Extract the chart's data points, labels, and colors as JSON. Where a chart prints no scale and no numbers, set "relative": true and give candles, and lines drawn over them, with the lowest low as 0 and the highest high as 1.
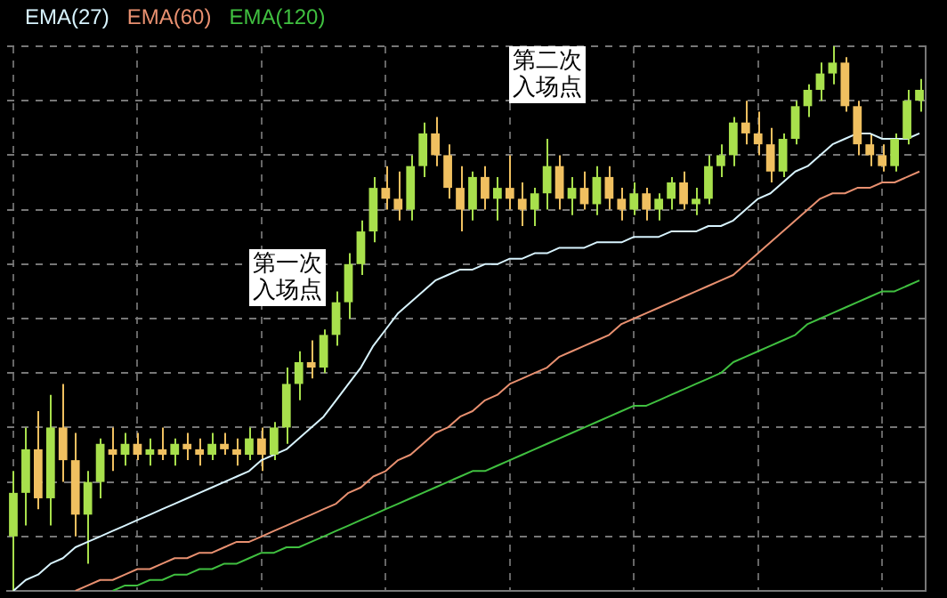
{
  "chart_data": {
    "type": "candlestick",
    "relative": true,
    "grid": true,
    "legend": "top left",
    "categories": [
      null,
      null,
      null,
      null,
      null,
      null,
      null,
      null,
      null,
      null,
      null,
      null,
      null,
      null,
      null,
      null,
      null,
      null,
      null,
      null,
      null,
      null,
      null,
      null,
      null,
      null,
      null,
      null,
      null,
      null,
      null,
      null,
      null,
      null,
      null,
      null,
      null,
      null,
      null,
      null,
      null,
      null,
      null,
      null,
      null,
      null,
      null,
      null,
      null,
      null,
      null,
      null,
      null,
      null,
      null,
      null,
      null,
      null,
      null,
      null,
      null,
      null,
      null,
      null,
      null,
      null,
      null,
      null,
      null,
      null,
      null,
      null,
      null,
      null
    ],
    "ohlc": [
      [
        0.1,
        0.22,
        0.0,
        0.18
      ],
      [
        0.18,
        0.3,
        0.12,
        0.26
      ],
      [
        0.26,
        0.33,
        0.15,
        0.17
      ],
      [
        0.17,
        0.36,
        0.12,
        0.3
      ],
      [
        0.3,
        0.38,
        0.2,
        0.24
      ],
      [
        0.24,
        0.29,
        0.1,
        0.14
      ],
      [
        0.14,
        0.22,
        0.05,
        0.2
      ],
      [
        0.2,
        0.28,
        0.17,
        0.27
      ],
      [
        0.26,
        0.3,
        0.22,
        0.25
      ],
      [
        0.25,
        0.29,
        0.23,
        0.27
      ],
      [
        0.27,
        0.29,
        0.24,
        0.25
      ],
      [
        0.25,
        0.28,
        0.23,
        0.26
      ],
      [
        0.26,
        0.3,
        0.24,
        0.25
      ],
      [
        0.25,
        0.28,
        0.23,
        0.27
      ],
      [
        0.27,
        0.29,
        0.24,
        0.26
      ],
      [
        0.26,
        0.28,
        0.23,
        0.25
      ],
      [
        0.25,
        0.29,
        0.24,
        0.27
      ],
      [
        0.27,
        0.29,
        0.25,
        0.26
      ],
      [
        0.26,
        0.28,
        0.23,
        0.25
      ],
      [
        0.25,
        0.3,
        0.24,
        0.28
      ],
      [
        0.28,
        0.3,
        0.22,
        0.25
      ],
      [
        0.25,
        0.31,
        0.24,
        0.3
      ],
      [
        0.3,
        0.41,
        0.27,
        0.38
      ],
      [
        0.38,
        0.44,
        0.35,
        0.42
      ],
      [
        0.42,
        0.46,
        0.39,
        0.41
      ],
      [
        0.41,
        0.48,
        0.4,
        0.47
      ],
      [
        0.47,
        0.55,
        0.45,
        0.53
      ],
      [
        0.53,
        0.62,
        0.5,
        0.6
      ],
      [
        0.6,
        0.68,
        0.58,
        0.66
      ],
      [
        0.66,
        0.76,
        0.64,
        0.74
      ],
      [
        0.74,
        0.78,
        0.7,
        0.72
      ],
      [
        0.72,
        0.77,
        0.68,
        0.7
      ],
      [
        0.7,
        0.8,
        0.68,
        0.78
      ],
      [
        0.78,
        0.86,
        0.76,
        0.84
      ],
      [
        0.84,
        0.87,
        0.78,
        0.8
      ],
      [
        0.8,
        0.82,
        0.72,
        0.74
      ],
      [
        0.74,
        0.78,
        0.66,
        0.7
      ],
      [
        0.7,
        0.77,
        0.68,
        0.76
      ],
      [
        0.76,
        0.78,
        0.7,
        0.72
      ],
      [
        0.72,
        0.76,
        0.68,
        0.74
      ],
      [
        0.74,
        0.8,
        0.7,
        0.72
      ],
      [
        0.72,
        0.75,
        0.67,
        0.7
      ],
      [
        0.7,
        0.74,
        0.67,
        0.73
      ],
      [
        0.73,
        0.83,
        0.7,
        0.78
      ],
      [
        0.78,
        0.8,
        0.7,
        0.72
      ],
      [
        0.72,
        0.76,
        0.69,
        0.74
      ],
      [
        0.74,
        0.77,
        0.7,
        0.71
      ],
      [
        0.71,
        0.78,
        0.69,
        0.76
      ],
      [
        0.76,
        0.78,
        0.7,
        0.72
      ],
      [
        0.72,
        0.74,
        0.68,
        0.7
      ],
      [
        0.7,
        0.75,
        0.69,
        0.73
      ],
      [
        0.73,
        0.74,
        0.68,
        0.7
      ],
      [
        0.7,
        0.73,
        0.68,
        0.72
      ],
      [
        0.72,
        0.76,
        0.7,
        0.75
      ],
      [
        0.75,
        0.77,
        0.7,
        0.71
      ],
      [
        0.71,
        0.74,
        0.69,
        0.72
      ],
      [
        0.72,
        0.8,
        0.71,
        0.78
      ],
      [
        0.78,
        0.82,
        0.76,
        0.8
      ],
      [
        0.8,
        0.87,
        0.78,
        0.86
      ],
      [
        0.86,
        0.9,
        0.82,
        0.84
      ],
      [
        0.84,
        0.88,
        0.8,
        0.82
      ],
      [
        0.82,
        0.85,
        0.75,
        0.77
      ],
      [
        0.77,
        0.84,
        0.76,
        0.83
      ],
      [
        0.83,
        0.9,
        0.82,
        0.89
      ],
      [
        0.89,
        0.93,
        0.87,
        0.92
      ],
      [
        0.92,
        0.97,
        0.9,
        0.95
      ],
      [
        0.95,
        1.0,
        0.93,
        0.97
      ],
      [
        0.97,
        0.98,
        0.88,
        0.89
      ],
      [
        0.89,
        0.9,
        0.8,
        0.82
      ],
      [
        0.82,
        0.84,
        0.78,
        0.8
      ],
      [
        0.8,
        0.82,
        0.77,
        0.78
      ],
      [
        0.78,
        0.84,
        0.77,
        0.83
      ],
      [
        0.83,
        0.92,
        0.82,
        0.9
      ],
      [
        0.9,
        0.94,
        0.88,
        0.92
      ]
    ],
    "colors": [
      "#a8e04c",
      "#a8e04c",
      "#f0c060",
      "#a8e04c",
      "#f0c060",
      "#f0c060",
      "#a8e04c",
      "#a8e04c",
      "#f0c060",
      "#a8e04c",
      "#f0c060",
      "#a8e04c",
      "#f0c060",
      "#a8e04c",
      "#f0c060",
      "#f0c060",
      "#a8e04c",
      "#f0c060",
      "#f0c060",
      "#a8e04c",
      "#f0c060",
      "#a8e04c",
      "#a8e04c",
      "#a8e04c",
      "#f0c060",
      "#a8e04c",
      "#a8e04c",
      "#a8e04c",
      "#a8e04c",
      "#a8e04c",
      "#f0c060",
      "#f0c060",
      "#a8e04c",
      "#a8e04c",
      "#f0c060",
      "#f0c060",
      "#f0c060",
      "#a8e04c",
      "#f0c060",
      "#a8e04c",
      "#f0c060",
      "#f0c060",
      "#a8e04c",
      "#a8e04c",
      "#f0c060",
      "#a8e04c",
      "#f0c060",
      "#a8e04c",
      "#f0c060",
      "#f0c060",
      "#a8e04c",
      "#f0c060",
      "#a8e04c",
      "#a8e04c",
      "#f0c060",
      "#a8e04c",
      "#a8e04c",
      "#a8e04c",
      "#a8e04c",
      "#f0c060",
      "#f0c060",
      "#f0c060",
      "#a8e04c",
      "#a8e04c",
      "#a8e04c",
      "#a8e04c",
      "#a8e04c",
      "#f0c060",
      "#f0c060",
      "#f0c060",
      "#f0c060",
      "#a8e04c",
      "#a8e04c",
      "#a8e04c"
    ],
    "series": [
      {
        "name": "EMA(27)",
        "type": "line",
        "color": "#d8f4ff",
        "values": [
          0.0,
          0.02,
          0.03,
          0.05,
          0.06,
          0.08,
          0.09,
          0.1,
          0.11,
          0.12,
          0.13,
          0.14,
          0.15,
          0.16,
          0.17,
          0.18,
          0.19,
          0.2,
          0.21,
          0.22,
          0.24,
          0.25,
          0.26,
          0.28,
          0.3,
          0.32,
          0.35,
          0.38,
          0.41,
          0.45,
          0.48,
          0.51,
          0.53,
          0.55,
          0.57,
          0.58,
          0.59,
          0.59,
          0.6,
          0.6,
          0.61,
          0.61,
          0.62,
          0.62,
          0.63,
          0.63,
          0.63,
          0.64,
          0.64,
          0.64,
          0.65,
          0.65,
          0.65,
          0.66,
          0.66,
          0.66,
          0.67,
          0.67,
          0.68,
          0.7,
          0.72,
          0.73,
          0.75,
          0.77,
          0.78,
          0.8,
          0.82,
          0.83,
          0.84,
          0.84,
          0.83,
          0.83,
          0.83,
          0.84
        ]
      },
      {
        "name": "EMA(60)",
        "type": "line",
        "color": "#e89070",
        "values": [
          null,
          null,
          null,
          null,
          null,
          0.0,
          0.01,
          0.02,
          0.02,
          0.03,
          0.04,
          0.04,
          0.05,
          0.06,
          0.06,
          0.07,
          0.07,
          0.08,
          0.09,
          0.09,
          0.1,
          0.11,
          0.12,
          0.13,
          0.14,
          0.15,
          0.16,
          0.18,
          0.19,
          0.21,
          0.22,
          0.24,
          0.25,
          0.27,
          0.29,
          0.3,
          0.32,
          0.33,
          0.35,
          0.36,
          0.38,
          0.39,
          0.4,
          0.41,
          0.43,
          0.44,
          0.45,
          0.46,
          0.47,
          0.49,
          0.5,
          0.51,
          0.52,
          0.53,
          0.54,
          0.55,
          0.56,
          0.57,
          0.58,
          0.6,
          0.62,
          0.64,
          0.66,
          0.68,
          0.7,
          0.72,
          0.73,
          0.73,
          0.74,
          0.74,
          0.75,
          0.75,
          0.76,
          0.77
        ]
      },
      {
        "name": "EMA(120)",
        "type": "line",
        "color": "#40c040",
        "values": [
          null,
          null,
          null,
          null,
          null,
          null,
          null,
          null,
          0.0,
          0.01,
          0.01,
          0.02,
          0.02,
          0.03,
          0.03,
          0.04,
          0.04,
          0.05,
          0.05,
          0.06,
          0.07,
          0.07,
          0.08,
          0.08,
          0.09,
          0.1,
          0.11,
          0.12,
          0.13,
          0.14,
          0.15,
          0.16,
          0.17,
          0.18,
          0.19,
          0.2,
          0.21,
          0.22,
          0.22,
          0.23,
          0.24,
          0.25,
          0.26,
          0.27,
          0.28,
          0.29,
          0.3,
          0.31,
          0.32,
          0.33,
          0.34,
          0.34,
          0.35,
          0.36,
          0.37,
          0.38,
          0.39,
          0.4,
          0.42,
          0.43,
          0.44,
          0.45,
          0.46,
          0.47,
          0.49,
          0.5,
          0.51,
          0.52,
          0.53,
          0.54,
          0.55,
          0.55,
          0.56,
          0.57
        ]
      }
    ],
    "annotations": [
      "第二次入场点",
      "第一次入场点"
    ]
  }
}
